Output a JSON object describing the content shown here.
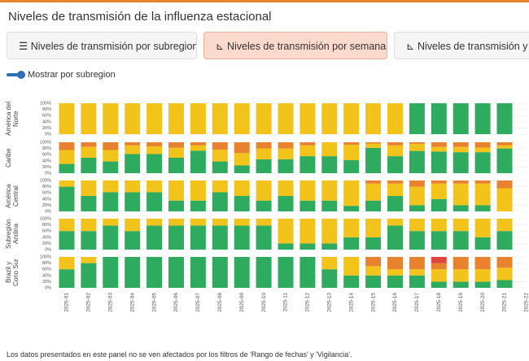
{
  "header": {
    "title": "Niveles de transmisión de la influenza estacional"
  },
  "tabs": [
    "Niveles de transmisión por subregion",
    "Niveles de transmisión por semana",
    "Niveles de transmisión y te"
  ],
  "toggle": {
    "label": "Mostrar por subregion"
  },
  "footer": "Los datos presentados en este panel no se ven afectados por los filtros de 'Rango de fechas' y 'Vigilancia'.",
  "chart_data": [
    {
      "type": "bar",
      "stacked": true,
      "title": "América del Norte",
      "ylim": [
        0,
        100
      ],
      "yticks": [
        {
          "value": 0,
          "label": "0%"
        },
        {
          "value": 20,
          "label": "20%"
        },
        {
          "value": 40,
          "label": "40%"
        },
        {
          "value": 60,
          "label": "60%"
        },
        {
          "value": 80,
          "label": "80%"
        },
        {
          "value": 100,
          "label": "100%"
        }
      ],
      "series": [
        {
          "color": "#2eab5e",
          "values": [
            0,
            0,
            0,
            0,
            0,
            0,
            0,
            0,
            0,
            0,
            0,
            0,
            0,
            0,
            0,
            0,
            100,
            100,
            100,
            100,
            100,
            null
          ]
        },
        {
          "color": "#f2c31a",
          "values": [
            100,
            100,
            100,
            100,
            100,
            100,
            100,
            100,
            100,
            100,
            100,
            100,
            100,
            100,
            100,
            100,
            0,
            0,
            0,
            0,
            0,
            null
          ]
        }
      ]
    },
    {
      "type": "bar",
      "stacked": true,
      "title": "Caribe",
      "ylim": [
        0,
        100
      ],
      "yticks": [
        {
          "value": 0,
          "label": "0%"
        },
        {
          "value": 20,
          "label": "20%"
        },
        {
          "value": 40,
          "label": "40%"
        },
        {
          "value": 60,
          "label": "60%"
        },
        {
          "value": 80,
          "label": "80%"
        },
        {
          "value": 100,
          "label": "100%"
        }
      ],
      "series": [
        {
          "color": "#2eab5e",
          "values": [
            30,
            50,
            38,
            62,
            62,
            50,
            73,
            38,
            25,
            45,
            45,
            55,
            55,
            42,
            82,
            55,
            72,
            70,
            68,
            68,
            80,
            null
          ]
        },
        {
          "color": "#f2c31a",
          "values": [
            45,
            35,
            37,
            28,
            25,
            32,
            17,
            38,
            40,
            35,
            35,
            35,
            45,
            50,
            14,
            35,
            23,
            15,
            17,
            15,
            10,
            null
          ]
        },
        {
          "color": "#e8822e",
          "values": [
            25,
            15,
            25,
            10,
            13,
            18,
            10,
            24,
            35,
            20,
            20,
            10,
            0,
            8,
            4,
            10,
            5,
            15,
            15,
            17,
            10,
            null
          ]
        }
      ]
    },
    {
      "type": "bar",
      "stacked": true,
      "title": "América Central",
      "ylim": [
        0,
        100
      ],
      "yticks": [
        {
          "value": 0,
          "label": "0%"
        },
        {
          "value": 20,
          "label": "20%"
        },
        {
          "value": 40,
          "label": "40%"
        },
        {
          "value": 60,
          "label": "60%"
        },
        {
          "value": 80,
          "label": "80%"
        },
        {
          "value": 100,
          "label": "100%"
        }
      ],
      "series": [
        {
          "color": "#2eab5e",
          "values": [
            80,
            50,
            62,
            62,
            62,
            35,
            35,
            62,
            50,
            35,
            50,
            35,
            35,
            18,
            35,
            50,
            20,
            40,
            20,
            20,
            0,
            null
          ]
        },
        {
          "color": "#f2c31a",
          "values": [
            20,
            50,
            38,
            38,
            38,
            65,
            65,
            38,
            50,
            65,
            50,
            65,
            65,
            82,
            55,
            40,
            60,
            50,
            70,
            70,
            75,
            null
          ]
        },
        {
          "color": "#e8822e",
          "values": [
            0,
            0,
            0,
            0,
            0,
            0,
            0,
            0,
            0,
            0,
            0,
            0,
            0,
            0,
            10,
            10,
            20,
            10,
            10,
            10,
            25,
            null
          ]
        }
      ]
    },
    {
      "type": "bar",
      "stacked": true,
      "title": "Subregión Andina",
      "ylim": [
        0,
        100
      ],
      "yticks": [
        {
          "value": 0,
          "label": "0%"
        },
        {
          "value": 20,
          "label": "20%"
        },
        {
          "value": 40,
          "label": "40%"
        },
        {
          "value": 60,
          "label": "60%"
        },
        {
          "value": 80,
          "label": "80%"
        },
        {
          "value": 100,
          "label": "100%"
        }
      ],
      "series": [
        {
          "color": "#2eab5e",
          "values": [
            60,
            60,
            78,
            60,
            78,
            78,
            78,
            78,
            78,
            78,
            20,
            20,
            20,
            40,
            40,
            78,
            60,
            60,
            60,
            40,
            60,
            null
          ]
        },
        {
          "color": "#f2c31a",
          "values": [
            40,
            40,
            22,
            40,
            22,
            22,
            22,
            22,
            22,
            22,
            80,
            80,
            80,
            60,
            60,
            22,
            40,
            40,
            40,
            60,
            40,
            null
          ]
        }
      ]
    },
    {
      "type": "bar",
      "stacked": true,
      "title": "Brazil y Cono Sur",
      "ylim": [
        0,
        100
      ],
      "yticks": [
        {
          "value": 0,
          "label": "0%"
        },
        {
          "value": 20,
          "label": "20%"
        },
        {
          "value": 40,
          "label": "40%"
        },
        {
          "value": 60,
          "label": "60%"
        },
        {
          "value": 80,
          "label": "80%"
        },
        {
          "value": 100,
          "label": "100%"
        }
      ],
      "categories": [
        "2025-01",
        "2025-02",
        "2025-03",
        "2025-04",
        "2025-05",
        "2025-06",
        "2025-07",
        "2025-08",
        "2025-09",
        "2025-10",
        "2025-11",
        "2025-12",
        "2025-13",
        "2025-14",
        "2025-15",
        "2025-16",
        "2025-17",
        "2025-18",
        "2025-19",
        "2025-20",
        "2025-21",
        "2025-22"
      ],
      "series": [
        {
          "color": "#2eab5e",
          "values": [
            60,
            80,
            100,
            100,
            100,
            100,
            100,
            100,
            100,
            100,
            100,
            100,
            60,
            40,
            40,
            40,
            40,
            20,
            20,
            20,
            25,
            null
          ]
        },
        {
          "color": "#f2c31a",
          "values": [
            40,
            20,
            0,
            0,
            0,
            0,
            0,
            0,
            0,
            0,
            0,
            0,
            40,
            60,
            30,
            20,
            20,
            40,
            40,
            40,
            40,
            null
          ]
        },
        {
          "color": "#e8822e",
          "values": [
            0,
            0,
            0,
            0,
            0,
            0,
            0,
            0,
            0,
            0,
            0,
            0,
            0,
            0,
            30,
            40,
            40,
            20,
            40,
            40,
            35,
            null
          ]
        },
        {
          "color": "#e0463e",
          "values": [
            0,
            0,
            0,
            0,
            0,
            0,
            0,
            0,
            0,
            0,
            0,
            0,
            0,
            0,
            0,
            0,
            0,
            20,
            0,
            0,
            0,
            null
          ]
        }
      ]
    }
  ]
}
